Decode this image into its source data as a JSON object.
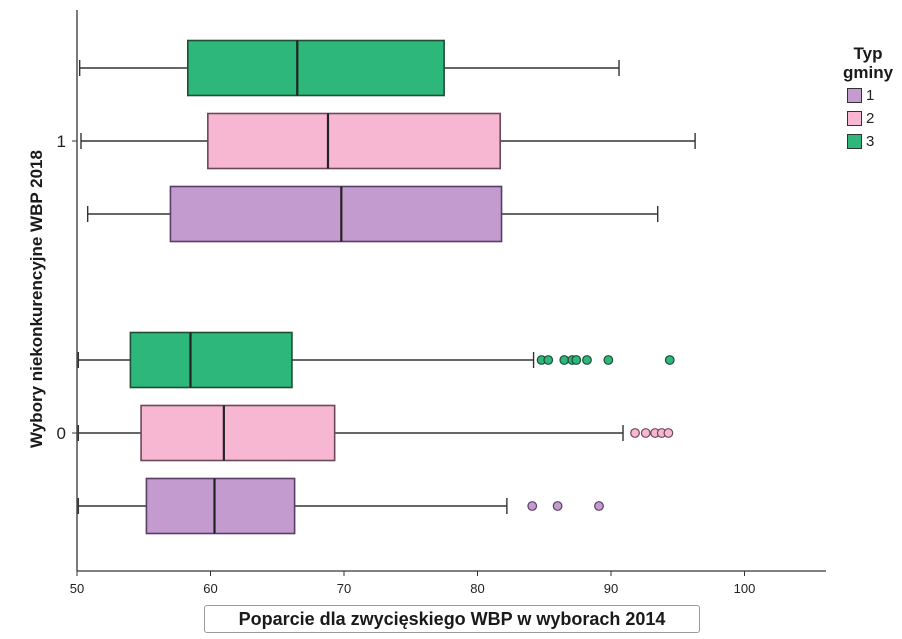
{
  "chart_data": {
    "type": "boxplot",
    "orientation": "horizontal",
    "xlabel": "Poparcie dla zwycięskiego WBP w wyborach 2014",
    "ylabel": "Wybory niekonkurencyjne WBP 2018",
    "xlim": [
      50,
      105
    ],
    "x_ticks": [
      "50",
      "60",
      "70",
      "80",
      "90",
      "100"
    ],
    "categories": [
      "1",
      "0"
    ],
    "legend": {
      "title": "Typ gminy",
      "position": "top-right"
    },
    "series": [
      {
        "name": "1",
        "color": "#c39bcf",
        "boxes": [
          {
            "category": "1",
            "whisker_low": 50.8,
            "q1": 57.0,
            "median": 69.8,
            "q3": 81.8,
            "whisker_high": 93.5,
            "outliers": []
          },
          {
            "category": "0",
            "whisker_low": 50.1,
            "q1": 55.2,
            "median": 60.3,
            "q3": 66.3,
            "whisker_high": 82.2,
            "outliers": [
              84.1,
              86.0,
              89.1
            ]
          }
        ]
      },
      {
        "name": "2",
        "color": "#f7b7d3",
        "boxes": [
          {
            "category": "1",
            "whisker_low": 50.3,
            "q1": 59.8,
            "median": 68.8,
            "q3": 81.7,
            "whisker_high": 96.3,
            "outliers": []
          },
          {
            "category": "0",
            "whisker_low": 50.1,
            "q1": 54.8,
            "median": 61.0,
            "q3": 69.3,
            "whisker_high": 90.9,
            "outliers": [
              91.8,
              92.6,
              93.3,
              93.8,
              94.3
            ]
          }
        ]
      },
      {
        "name": "3",
        "color": "#2db77a",
        "boxes": [
          {
            "category": "1",
            "whisker_low": 50.2,
            "q1": 58.3,
            "median": 66.5,
            "q3": 77.5,
            "whisker_high": 90.6,
            "outliers": []
          },
          {
            "category": "0",
            "whisker_low": 50.1,
            "q1": 54.0,
            "median": 58.5,
            "q3": 66.1,
            "whisker_high": 84.2,
            "outliers": [
              84.8,
              85.3,
              86.5,
              87.1,
              87.4,
              88.2,
              89.8,
              94.4
            ]
          }
        ]
      }
    ],
    "grid": false
  }
}
